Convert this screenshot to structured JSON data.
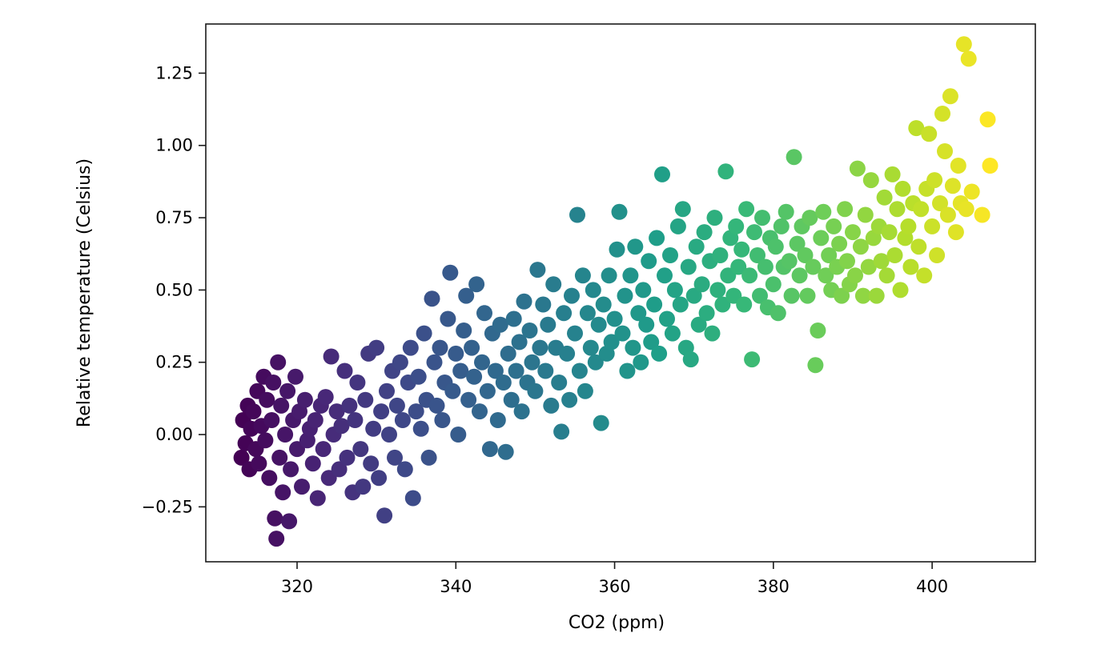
{
  "chart_data": {
    "type": "scatter",
    "title": "",
    "xlabel": "CO2 (ppm)",
    "ylabel": "Relative temperature (Celsius)",
    "xlim": [
      308.5,
      413
    ],
    "ylim": [
      -0.44,
      1.42
    ],
    "xticks": [
      320,
      340,
      360,
      380,
      400
    ],
    "yticks": [
      -0.25,
      0.0,
      0.25,
      0.5,
      0.75,
      1.0,
      1.25
    ],
    "xtick_labels": [
      "320",
      "340",
      "360",
      "380",
      "400"
    ],
    "ytick_labels": [
      "−0.25",
      "0.00",
      "0.25",
      "0.50",
      "0.75",
      "1.00",
      "1.25"
    ],
    "grid": false,
    "legend": "none",
    "colormap": "viridis",
    "colormap_stops": [
      "#440154",
      "#482878",
      "#3e4a89",
      "#31688e",
      "#26828e",
      "#1f9e89",
      "#35b779",
      "#6ece58",
      "#b5de2b",
      "#fde725"
    ],
    "points": [
      [
        313.0,
        -0.08
      ],
      [
        313.2,
        0.05
      ],
      [
        313.5,
        -0.03
      ],
      [
        313.8,
        0.1
      ],
      [
        314.0,
        -0.12
      ],
      [
        314.2,
        0.02
      ],
      [
        314.5,
        0.08
      ],
      [
        314.8,
        -0.05
      ],
      [
        315.0,
        0.15
      ],
      [
        315.2,
        -0.1
      ],
      [
        315.5,
        0.03
      ],
      [
        315.8,
        0.2
      ],
      [
        316.0,
        -0.02
      ],
      [
        316.2,
        0.12
      ],
      [
        316.5,
        -0.15
      ],
      [
        316.8,
        0.05
      ],
      [
        317.0,
        0.18
      ],
      [
        317.2,
        -0.29
      ],
      [
        317.4,
        -0.36
      ],
      [
        317.6,
        0.25
      ],
      [
        317.8,
        -0.08
      ],
      [
        318.0,
        0.1
      ],
      [
        318.2,
        -0.2
      ],
      [
        318.5,
        0.0
      ],
      [
        318.8,
        0.15
      ],
      [
        319.0,
        -0.3
      ],
      [
        319.2,
        -0.12
      ],
      [
        319.5,
        0.05
      ],
      [
        319.8,
        0.2
      ],
      [
        320.0,
        -0.05
      ],
      [
        320.3,
        0.08
      ],
      [
        320.6,
        -0.18
      ],
      [
        321.0,
        0.12
      ],
      [
        321.3,
        -0.02
      ],
      [
        321.6,
        0.02
      ],
      [
        322.0,
        -0.1
      ],
      [
        322.3,
        0.05
      ],
      [
        322.6,
        -0.22
      ],
      [
        323.0,
        0.1
      ],
      [
        323.3,
        -0.05
      ],
      [
        323.6,
        0.13
      ],
      [
        324.0,
        -0.15
      ],
      [
        324.3,
        0.27
      ],
      [
        324.6,
        0.0
      ],
      [
        325.0,
        0.08
      ],
      [
        325.3,
        -0.12
      ],
      [
        325.6,
        0.03
      ],
      [
        326.0,
        0.22
      ],
      [
        326.3,
        -0.08
      ],
      [
        326.6,
        0.1
      ],
      [
        327.0,
        -0.2
      ],
      [
        327.3,
        0.05
      ],
      [
        327.6,
        0.18
      ],
      [
        328.0,
        -0.05
      ],
      [
        328.3,
        -0.18
      ],
      [
        328.6,
        0.12
      ],
      [
        329.0,
        0.28
      ],
      [
        329.3,
        -0.1
      ],
      [
        329.6,
        0.02
      ],
      [
        330.0,
        0.3
      ],
      [
        330.3,
        -0.15
      ],
      [
        330.6,
        0.08
      ],
      [
        331.0,
        -0.28
      ],
      [
        331.3,
        0.15
      ],
      [
        331.6,
        0.0
      ],
      [
        332.0,
        0.22
      ],
      [
        332.3,
        -0.08
      ],
      [
        332.6,
        0.1
      ],
      [
        333.0,
        0.25
      ],
      [
        333.3,
        0.05
      ],
      [
        333.6,
        -0.12
      ],
      [
        334.0,
        0.18
      ],
      [
        334.3,
        0.3
      ],
      [
        334.6,
        -0.22
      ],
      [
        335.0,
        0.08
      ],
      [
        335.3,
        0.2
      ],
      [
        335.6,
        0.02
      ],
      [
        336.0,
        0.35
      ],
      [
        336.3,
        0.12
      ],
      [
        336.6,
        -0.08
      ],
      [
        337.0,
        0.47
      ],
      [
        337.3,
        0.25
      ],
      [
        337.6,
        0.1
      ],
      [
        338.0,
        0.3
      ],
      [
        338.3,
        0.05
      ],
      [
        338.6,
        0.18
      ],
      [
        339.0,
        0.4
      ],
      [
        339.3,
        0.56
      ],
      [
        339.6,
        0.15
      ],
      [
        340.0,
        0.28
      ],
      [
        340.3,
        0.0
      ],
      [
        340.6,
        0.22
      ],
      [
        341.0,
        0.36
      ],
      [
        341.3,
        0.48
      ],
      [
        341.6,
        0.12
      ],
      [
        342.0,
        0.3
      ],
      [
        342.3,
        0.2
      ],
      [
        342.6,
        0.52
      ],
      [
        343.0,
        0.08
      ],
      [
        343.3,
        0.25
      ],
      [
        343.6,
        0.42
      ],
      [
        344.0,
        0.15
      ],
      [
        344.3,
        -0.05
      ],
      [
        344.6,
        0.35
      ],
      [
        345.0,
        0.22
      ],
      [
        345.3,
        0.05
      ],
      [
        345.6,
        0.38
      ],
      [
        346.0,
        0.18
      ],
      [
        346.3,
        -0.06
      ],
      [
        346.6,
        0.28
      ],
      [
        347.0,
        0.12
      ],
      [
        347.3,
        0.4
      ],
      [
        347.6,
        0.22
      ],
      [
        348.0,
        0.32
      ],
      [
        348.3,
        0.08
      ],
      [
        348.6,
        0.46
      ],
      [
        349.0,
        0.18
      ],
      [
        349.3,
        0.36
      ],
      [
        349.6,
        0.25
      ],
      [
        350.0,
        0.15
      ],
      [
        350.3,
        0.57
      ],
      [
        350.6,
        0.3
      ],
      [
        351.0,
        0.45
      ],
      [
        351.3,
        0.22
      ],
      [
        351.6,
        0.38
      ],
      [
        352.0,
        0.1
      ],
      [
        352.3,
        0.52
      ],
      [
        352.6,
        0.3
      ],
      [
        353.0,
        0.18
      ],
      [
        353.3,
        0.01
      ],
      [
        353.6,
        0.42
      ],
      [
        354.0,
        0.28
      ],
      [
        354.3,
        0.12
      ],
      [
        354.6,
        0.48
      ],
      [
        355.0,
        0.35
      ],
      [
        355.3,
        0.76
      ],
      [
        355.6,
        0.22
      ],
      [
        356.0,
        0.55
      ],
      [
        356.3,
        0.15
      ],
      [
        356.6,
        0.42
      ],
      [
        357.0,
        0.3
      ],
      [
        357.3,
        0.5
      ],
      [
        357.6,
        0.25
      ],
      [
        358.0,
        0.38
      ],
      [
        358.3,
        0.04
      ],
      [
        358.6,
        0.45
      ],
      [
        359.0,
        0.28
      ],
      [
        359.3,
        0.55
      ],
      [
        359.6,
        0.32
      ],
      [
        360.0,
        0.4
      ],
      [
        360.3,
        0.64
      ],
      [
        360.6,
        0.77
      ],
      [
        361.0,
        0.35
      ],
      [
        361.3,
        0.48
      ],
      [
        361.6,
        0.22
      ],
      [
        362.0,
        0.55
      ],
      [
        362.3,
        0.3
      ],
      [
        362.6,
        0.65
      ],
      [
        363.0,
        0.42
      ],
      [
        363.3,
        0.25
      ],
      [
        363.6,
        0.5
      ],
      [
        364.0,
        0.38
      ],
      [
        364.3,
        0.6
      ],
      [
        364.6,
        0.32
      ],
      [
        365.0,
        0.45
      ],
      [
        365.3,
        0.68
      ],
      [
        365.6,
        0.28
      ],
      [
        366.0,
        0.9
      ],
      [
        366.3,
        0.55
      ],
      [
        366.6,
        0.4
      ],
      [
        367.0,
        0.62
      ],
      [
        367.3,
        0.35
      ],
      [
        367.6,
        0.5
      ],
      [
        368.0,
        0.72
      ],
      [
        368.3,
        0.45
      ],
      [
        368.6,
        0.78
      ],
      [
        369.0,
        0.3
      ],
      [
        369.3,
        0.58
      ],
      [
        369.6,
        0.26
      ],
      [
        370.0,
        0.48
      ],
      [
        370.3,
        0.65
      ],
      [
        370.6,
        0.38
      ],
      [
        371.0,
        0.52
      ],
      [
        371.3,
        0.7
      ],
      [
        371.6,
        0.42
      ],
      [
        372.0,
        0.6
      ],
      [
        372.3,
        0.35
      ],
      [
        372.6,
        0.75
      ],
      [
        373.0,
        0.5
      ],
      [
        373.3,
        0.62
      ],
      [
        373.6,
        0.45
      ],
      [
        374.0,
        0.91
      ],
      [
        374.3,
        0.55
      ],
      [
        374.6,
        0.68
      ],
      [
        375.0,
        0.48
      ],
      [
        375.3,
        0.72
      ],
      [
        375.6,
        0.58
      ],
      [
        376.0,
        0.64
      ],
      [
        376.3,
        0.45
      ],
      [
        376.6,
        0.78
      ],
      [
        377.0,
        0.55
      ],
      [
        377.3,
        0.26
      ],
      [
        377.6,
        0.7
      ],
      [
        378.0,
        0.62
      ],
      [
        378.3,
        0.48
      ],
      [
        378.6,
        0.75
      ],
      [
        379.0,
        0.58
      ],
      [
        379.3,
        0.44
      ],
      [
        379.6,
        0.68
      ],
      [
        380.0,
        0.52
      ],
      [
        380.3,
        0.65
      ],
      [
        380.6,
        0.42
      ],
      [
        381.0,
        0.72
      ],
      [
        381.3,
        0.58
      ],
      [
        381.6,
        0.77
      ],
      [
        382.0,
        0.6
      ],
      [
        382.3,
        0.48
      ],
      [
        382.6,
        0.96
      ],
      [
        383.0,
        0.66
      ],
      [
        383.3,
        0.55
      ],
      [
        383.6,
        0.72
      ],
      [
        384.0,
        0.62
      ],
      [
        384.3,
        0.48
      ],
      [
        384.6,
        0.75
      ],
      [
        385.0,
        0.58
      ],
      [
        385.3,
        0.24
      ],
      [
        385.6,
        0.36
      ],
      [
        386.0,
        0.68
      ],
      [
        386.3,
        0.77
      ],
      [
        386.6,
        0.55
      ],
      [
        387.0,
        0.62
      ],
      [
        387.3,
        0.5
      ],
      [
        387.6,
        0.72
      ],
      [
        388.0,
        0.58
      ],
      [
        388.3,
        0.66
      ],
      [
        388.6,
        0.48
      ],
      [
        389.0,
        0.78
      ],
      [
        389.3,
        0.6
      ],
      [
        389.6,
        0.52
      ],
      [
        390.0,
        0.7
      ],
      [
        390.3,
        0.55
      ],
      [
        390.6,
        0.92
      ],
      [
        391.0,
        0.65
      ],
      [
        391.3,
        0.48
      ],
      [
        391.6,
        0.76
      ],
      [
        392.0,
        0.58
      ],
      [
        392.3,
        0.88
      ],
      [
        392.6,
        0.68
      ],
      [
        393.0,
        0.48
      ],
      [
        393.3,
        0.72
      ],
      [
        393.6,
        0.6
      ],
      [
        394.0,
        0.82
      ],
      [
        394.3,
        0.55
      ],
      [
        394.6,
        0.7
      ],
      [
        395.0,
        0.9
      ],
      [
        395.3,
        0.62
      ],
      [
        395.6,
        0.78
      ],
      [
        396.0,
        0.5
      ],
      [
        396.3,
        0.85
      ],
      [
        396.6,
        0.68
      ],
      [
        397.0,
        0.72
      ],
      [
        397.3,
        0.58
      ],
      [
        397.6,
        0.8
      ],
      [
        398.0,
        1.06
      ],
      [
        398.3,
        0.65
      ],
      [
        398.6,
        0.78
      ],
      [
        399.0,
        0.55
      ],
      [
        399.3,
        0.85
      ],
      [
        399.6,
        1.04
      ],
      [
        400.0,
        0.72
      ],
      [
        400.3,
        0.88
      ],
      [
        400.6,
        0.62
      ],
      [
        401.0,
        0.8
      ],
      [
        401.3,
        1.11
      ],
      [
        401.6,
        0.98
      ],
      [
        402.0,
        0.76
      ],
      [
        402.3,
        1.17
      ],
      [
        402.6,
        0.86
      ],
      [
        403.0,
        0.7
      ],
      [
        403.3,
        0.93
      ],
      [
        403.6,
        0.8
      ],
      [
        404.0,
        1.35
      ],
      [
        404.3,
        0.78
      ],
      [
        404.6,
        1.3
      ],
      [
        405.0,
        0.84
      ],
      [
        406.3,
        0.76
      ],
      [
        407.0,
        1.09
      ],
      [
        407.3,
        0.93
      ]
    ]
  }
}
